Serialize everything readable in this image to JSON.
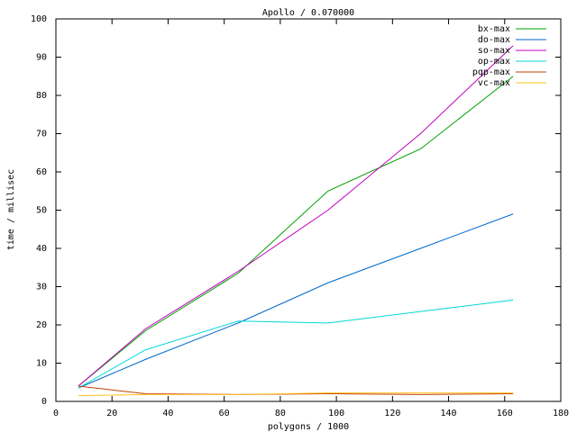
{
  "chart_data": {
    "type": "line",
    "title": "Apollo / 0.070000",
    "x_label": "polygons / 1000",
    "y_label": "time / millisec",
    "x": [
      8,
      32,
      65,
      97,
      130,
      163
    ],
    "series": [
      {
        "name": "bx-max",
        "color": "#00a000",
        "values": [
          4,
          18.5,
          33.5,
          55,
          66,
          85
        ]
      },
      {
        "name": "do-max",
        "color": "#0066cc",
        "values": [
          3.5,
          11,
          20.5,
          31,
          40,
          49
        ]
      },
      {
        "name": "so-max",
        "color": "#c000c0",
        "values": [
          4,
          19,
          34,
          50,
          70,
          93
        ]
      },
      {
        "name": "op-max",
        "color": "#00d8d8",
        "values": [
          3.5,
          13.5,
          21,
          20.5,
          23.5,
          26.5
        ]
      },
      {
        "name": "pqp-max",
        "color": "#c04000",
        "values": [
          4,
          2,
          1.8,
          2,
          1.8,
          2
        ]
      },
      {
        "name": "vc-max",
        "color": "#ffc020",
        "values": [
          1.5,
          1.8,
          1.8,
          2.2,
          2.2,
          2.2
        ]
      }
    ],
    "xlim": [
      0,
      180
    ],
    "xticks": [
      0,
      20,
      40,
      60,
      80,
      100,
      120,
      140,
      160,
      180
    ],
    "ylim": [
      0,
      100
    ],
    "yticks": [
      0,
      10,
      20,
      30,
      40,
      50,
      60,
      70,
      80,
      90,
      100
    ],
    "legend": "top-right",
    "grid": false
  }
}
